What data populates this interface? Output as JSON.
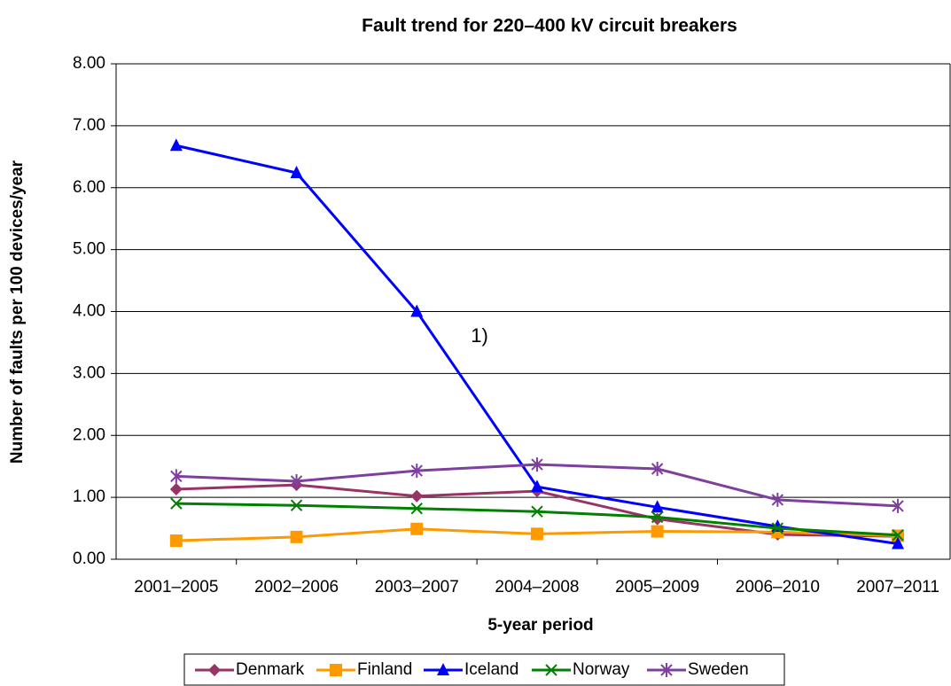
{
  "chart_data": {
    "type": "line",
    "title": "Fault trend for 220–400 kV circuit breakers",
    "x_label": "5-year period",
    "y_label": "Number of faults per 100 devices/year",
    "annotation": "1)",
    "categories": [
      "2001–2005",
      "2002–2006",
      "2003–2007",
      "2004–2008",
      "2005–2009",
      "2006–2010",
      "2007–2011"
    ],
    "series": [
      {
        "name": "Denmark",
        "color": "#993366",
        "marker": "diamond",
        "values": [
          1.13,
          1.2,
          1.02,
          1.1,
          0.65,
          0.4,
          0.37
        ]
      },
      {
        "name": "Finland",
        "color": "#FF9900",
        "marker": "square",
        "values": [
          0.3,
          0.36,
          0.49,
          0.41,
          0.45,
          0.44,
          0.38
        ]
      },
      {
        "name": "Iceland",
        "color": "#0000FF",
        "marker": "triangle",
        "values": [
          6.68,
          6.24,
          4.0,
          1.17,
          0.84,
          0.53,
          0.25
        ]
      },
      {
        "name": "Norway",
        "color": "#008000",
        "marker": "x",
        "values": [
          0.9,
          0.87,
          0.82,
          0.77,
          0.68,
          0.5,
          0.39
        ]
      },
      {
        "name": "Sweden",
        "color": "#7F3F9F",
        "marker": "asterisk",
        "values": [
          1.34,
          1.26,
          1.43,
          1.53,
          1.46,
          0.96,
          0.86
        ]
      }
    ],
    "ylim": [
      0,
      8
    ],
    "yticks": [
      {
        "value": 0,
        "label": "0.00"
      },
      {
        "value": 1,
        "label": "1.00"
      },
      {
        "value": 2,
        "label": "2.00"
      },
      {
        "value": 3,
        "label": "3.00"
      },
      {
        "value": 4,
        "label": "4.00"
      },
      {
        "value": 5,
        "label": "5.00"
      },
      {
        "value": 6,
        "label": "6.00"
      },
      {
        "value": 7,
        "label": "7.00"
      },
      {
        "value": 8,
        "label": "8.00"
      }
    ],
    "grid": true,
    "legend": "bottom"
  }
}
